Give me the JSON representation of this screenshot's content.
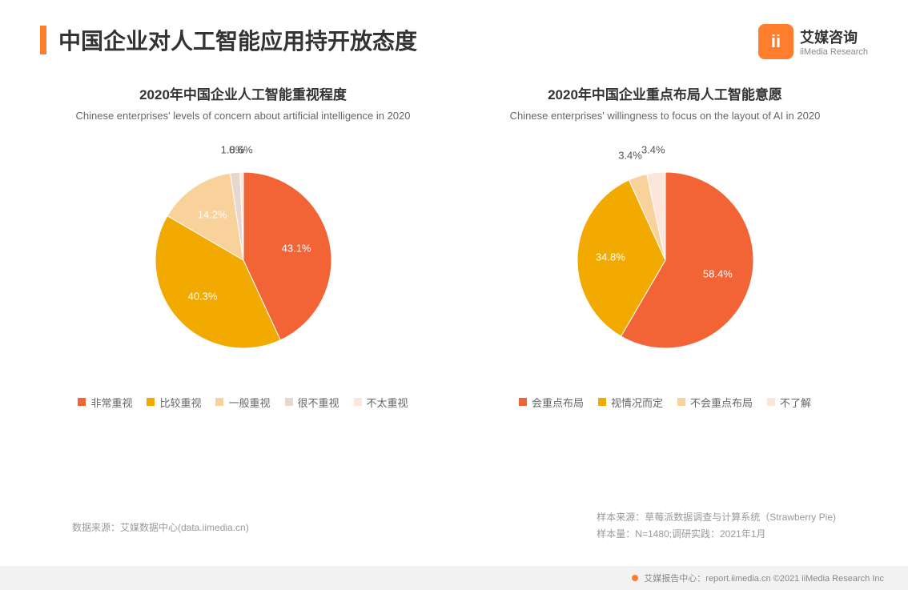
{
  "header": {
    "title": "中国企业对人工智能应用持开放态度",
    "accent_color": "#ff7e2e",
    "logo": {
      "cn": "艾媒咨询",
      "en": "iiMedia Research",
      "glyph": "ii"
    }
  },
  "chart_left": {
    "type": "pie",
    "title_cn": "2020年中国企业人工智能重视程度",
    "title_en": "Chinese enterprises' levels of concern about artificial intelligence in 2020",
    "radius": 110,
    "background_color": "#ffffff",
    "slices": [
      {
        "label": "非常重视",
        "value": 43.1,
        "display": "43.1%",
        "color": "#f26336"
      },
      {
        "label": "比较重视",
        "value": 40.3,
        "display": "40.3%",
        "color": "#f2a900"
      },
      {
        "label": "一般重视",
        "value": 14.2,
        "display": "14.2%",
        "color": "#f9d19b"
      },
      {
        "label": "很不重视",
        "value": 1.8,
        "display": "1.8%",
        "color": "#e6d8cf"
      },
      {
        "label": "不太重视",
        "value": 0.6,
        "display": "0.6%",
        "color": "#fbe6d9"
      }
    ]
  },
  "chart_right": {
    "type": "pie",
    "title_cn": "2020年中国企业重点布局人工智能意愿",
    "title_en": "Chinese enterprises' willingness to focus  on the layout of AI in 2020",
    "radius": 110,
    "background_color": "#ffffff",
    "slices": [
      {
        "label": "会重点布局",
        "value": 58.4,
        "display": "58.4%",
        "color": "#f26336"
      },
      {
        "label": "视情况而定",
        "value": 34.8,
        "display": "34.8%",
        "color": "#f2a900"
      },
      {
        "label": "不会重点布局",
        "value": 3.4,
        "display": "3.4%",
        "color": "#f9d19b"
      },
      {
        "label": "不了解",
        "value": 3.4,
        "display": "3.4%",
        "color": "#fbe6d9"
      }
    ]
  },
  "footer": {
    "source_left": "数据来源：艾媒数据中心(data.iimedia.cn)",
    "sample_source": "样本来源：草莓派数据调查与计算系统（Strawberry Pie)",
    "sample_size": "样本量：N=1480;调研实践：2021年1月",
    "copyright": "艾媒报告中心：report.iimedia.cn ©2021  iiMedia Research  Inc"
  },
  "label_fontsize": 13,
  "title_fontsize": 17,
  "subtitle_fontsize": 13
}
